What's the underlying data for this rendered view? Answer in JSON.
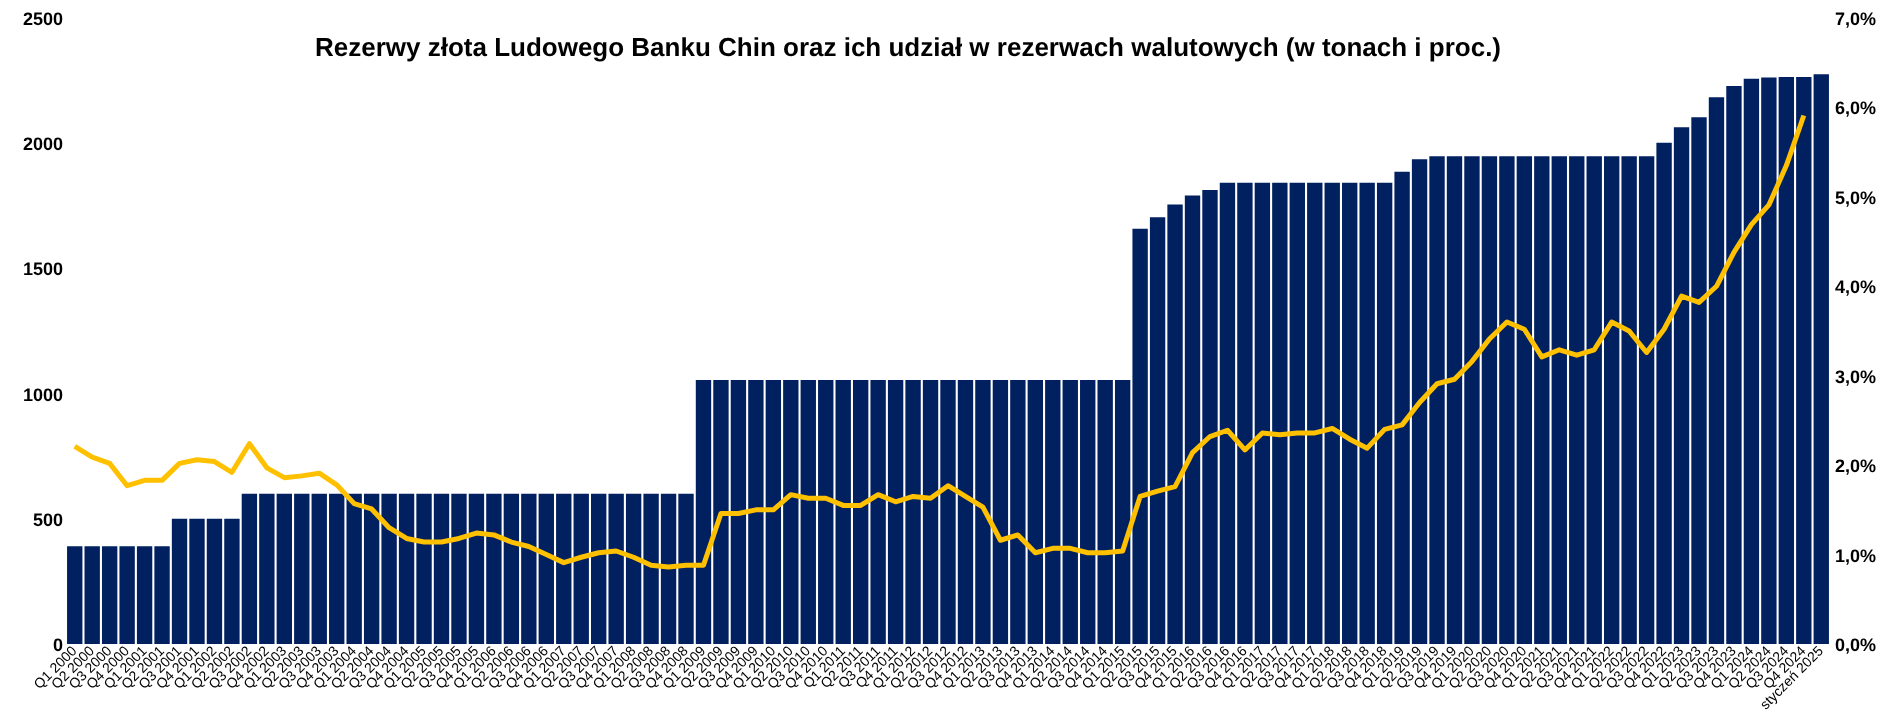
{
  "chart_data": {
    "type": "bar",
    "title": "Rezerwy złota Ludowego Banku Chin oraz ich udział w rezerwach walutowych (w tonach i proc.)",
    "categories": [
      "Q1 2000",
      "Q2 2000",
      "Q3 2000",
      "Q4 2000",
      "Q1 2001",
      "Q2 2001",
      "Q3 2001",
      "Q4 2001",
      "Q1 2002",
      "Q2 2002",
      "Q3 2002",
      "Q4 2002",
      "Q1 2003",
      "Q2 2003",
      "Q3 2003",
      "Q4 2003",
      "Q1 2004",
      "Q2 2004",
      "Q3 2004",
      "Q4 2004",
      "Q1 2005",
      "Q2 2005",
      "Q3 2005",
      "Q4 2005",
      "Q1 2006",
      "Q2 2006",
      "Q3 2006",
      "Q4 2006",
      "Q1 2007",
      "Q2 2007",
      "Q3 2007",
      "Q4 2007",
      "Q1 2008",
      "Q2 2008",
      "Q3 2008",
      "Q4 2008",
      "Q1 2009",
      "Q2 2009",
      "Q3 2009",
      "Q4 2009",
      "Q1 2010",
      "Q2 2010",
      "Q3 2010",
      "Q4 2010",
      "Q1 2011",
      "Q2 2011",
      "Q3 2011",
      "Q4 2011",
      "Q1 2012",
      "Q2 2012",
      "Q3 2012",
      "Q4 2012",
      "Q1 2013",
      "Q2 2013",
      "Q3 2013",
      "Q4 2013",
      "Q1 2014",
      "Q2 2014",
      "Q3 2014",
      "Q4 2014",
      "Q1 2015",
      "Q2 2015",
      "Q3 2015",
      "Q4 2015",
      "Q1 2016",
      "Q2 2016",
      "Q3 2016",
      "Q4 2016",
      "Q1 2017",
      "Q2 2017",
      "Q3 2017",
      "Q4 2017",
      "Q1 2018",
      "Q2 2018",
      "Q3 2018",
      "Q4 2018",
      "Q1 2019",
      "Q2 2019",
      "Q3 2019",
      "Q4 2019",
      "Q1 2020",
      "Q2 2020",
      "Q3 2020",
      "Q4 2020",
      "Q1 2021",
      "Q2 2021",
      "Q3 2021",
      "Q4 2021",
      "Q1 2022",
      "Q2 2022",
      "Q3 2022",
      "Q4 2022",
      "Q1 2023",
      "Q2 2023",
      "Q3 2023",
      "Q4 2023",
      "Q1 2024",
      "Q2 2024",
      "Q3 2024",
      "Q4 2024",
      "styczeń 2025"
    ],
    "series": [
      {
        "color": "#002060",
        "values": [
          390,
          390,
          390,
          390,
          390,
          390,
          500,
          500,
          500,
          500,
          600,
          600,
          600,
          600,
          600,
          600,
          600,
          600,
          600,
          600,
          600,
          600,
          600,
          600,
          600,
          600,
          600,
          600,
          600,
          600,
          600,
          600,
          600,
          600,
          600,
          600,
          1054,
          1054,
          1054,
          1054,
          1054,
          1054,
          1054,
          1054,
          1054,
          1054,
          1054,
          1054,
          1054,
          1054,
          1054,
          1054,
          1054,
          1054,
          1054,
          1054,
          1054,
          1054,
          1054,
          1054,
          1054,
          1658,
          1704,
          1755,
          1791,
          1813,
          1842,
          1842,
          1842,
          1842,
          1842,
          1842,
          1842,
          1842,
          1842,
          1842,
          1886,
          1936,
          1948,
          1948,
          1948,
          1948,
          1948,
          1948,
          1948,
          1948,
          1948,
          1948,
          1948,
          1948,
          1948,
          2002,
          2064,
          2104,
          2184,
          2228,
          2257,
          2262,
          2264,
          2264,
          2275
        ]
      },
      {
        "type": "line",
        "axis": "y2",
        "color": "#ffc000",
        "values": [
          2.21,
          2.09,
          2.02,
          1.77,
          1.83,
          1.83,
          2.02,
          2.06,
          2.04,
          1.92,
          2.24,
          1.97,
          1.86,
          1.88,
          1.91,
          1.78,
          1.57,
          1.51,
          1.3,
          1.18,
          1.14,
          1.14,
          1.18,
          1.24,
          1.22,
          1.14,
          1.09,
          1.0,
          0.91,
          0.97,
          1.02,
          1.04,
          0.97,
          0.88,
          0.86,
          0.88,
          0.88,
          1.46,
          1.46,
          1.5,
          1.5,
          1.67,
          1.63,
          1.63,
          1.55,
          1.55,
          1.67,
          1.59,
          1.65,
          1.63,
          1.77,
          1.65,
          1.53,
          1.16,
          1.22,
          1.02,
          1.07,
          1.07,
          1.02,
          1.02,
          1.04,
          1.65,
          1.71,
          1.76,
          2.14,
          2.32,
          2.39,
          2.17,
          2.36,
          2.34,
          2.36,
          2.36,
          2.41,
          2.29,
          2.19,
          2.4,
          2.45,
          2.7,
          2.91,
          2.96,
          3.16,
          3.41,
          3.6,
          3.52,
          3.21,
          3.29,
          3.23,
          3.29,
          3.6,
          3.5,
          3.26,
          3.52,
          3.89,
          3.82,
          4.0,
          4.38,
          4.69,
          4.91,
          5.35,
          5.91,
          null
        ]
      }
    ],
    "ylim": [
      0,
      2500
    ],
    "yticks": [
      0,
      500,
      1000,
      1500,
      2000,
      2500
    ],
    "y2lim": [
      0,
      7
    ],
    "y2ticks": [
      {
        "value": 0,
        "label": "0,0%"
      },
      {
        "value": 1,
        "label": "1,0%"
      },
      {
        "value": 2,
        "label": "2,0%"
      },
      {
        "value": 3,
        "label": "3,0%"
      },
      {
        "value": 4,
        "label": "4,0%"
      },
      {
        "value": 5,
        "label": "5,0%"
      },
      {
        "value": 6,
        "label": "6,0%"
      },
      {
        "value": 7,
        "label": "7,0%"
      }
    ],
    "grid": false
  }
}
